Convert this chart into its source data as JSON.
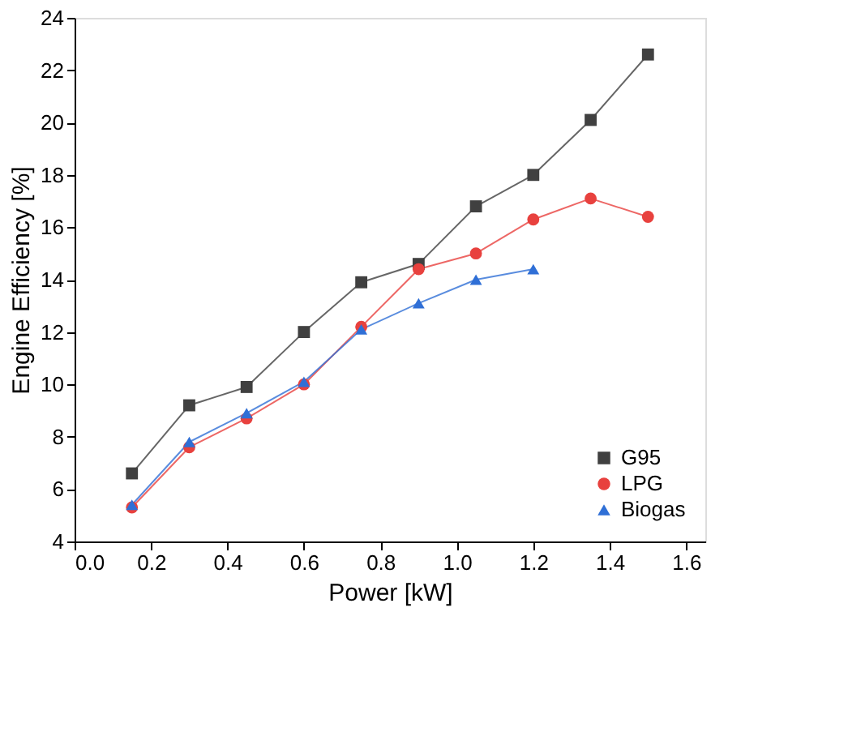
{
  "chart_data": {
    "type": "line",
    "xlabel": "Power [kW]",
    "ylabel": "Engine Efficiency [%]",
    "xlim": [
      0.0,
      1.65
    ],
    "xticks": [
      {
        "value": 0,
        "label": "0.0"
      },
      {
        "value": 0.2,
        "label": "0.2"
      },
      {
        "value": 0.4,
        "label": "0.4"
      },
      {
        "value": 0.6,
        "label": "0.6"
      },
      {
        "value": 0.8,
        "label": "0.8"
      },
      {
        "value": 1.0,
        "label": "1.0"
      },
      {
        "value": 1.2,
        "label": "1.2"
      },
      {
        "value": 1.4,
        "label": "1.4"
      },
      {
        "value": 1.6,
        "label": "1.6"
      }
    ],
    "ylim": [
      4,
      24
    ],
    "yticks": [
      4,
      6,
      8,
      10,
      12,
      14,
      16,
      18,
      20,
      22,
      24
    ],
    "x": [
      0.15,
      0.3,
      0.45,
      0.6,
      0.75,
      0.9,
      1.05,
      1.2,
      1.35,
      1.5
    ],
    "series": [
      {
        "name": "G95",
        "color": "#404040",
        "marker": "square",
        "values": [
          6.6,
          9.2,
          9.9,
          12.0,
          13.9,
          14.6,
          16.8,
          18.0,
          20.1,
          22.6
        ]
      },
      {
        "name": "LPG",
        "color": "#e8413e",
        "marker": "circle",
        "values": [
          5.3,
          7.6,
          8.7,
          10.0,
          12.2,
          14.4,
          15.0,
          16.3,
          17.1,
          16.4
        ]
      },
      {
        "name": "Biogas",
        "color": "#2f6fd6",
        "marker": "triangle",
        "values": [
          5.4,
          7.8,
          8.9,
          10.1,
          12.1,
          13.1,
          14.0,
          14.4,
          null,
          null
        ]
      }
    ],
    "legend": "bottom right",
    "grid": false,
    "line_style": "solid"
  }
}
